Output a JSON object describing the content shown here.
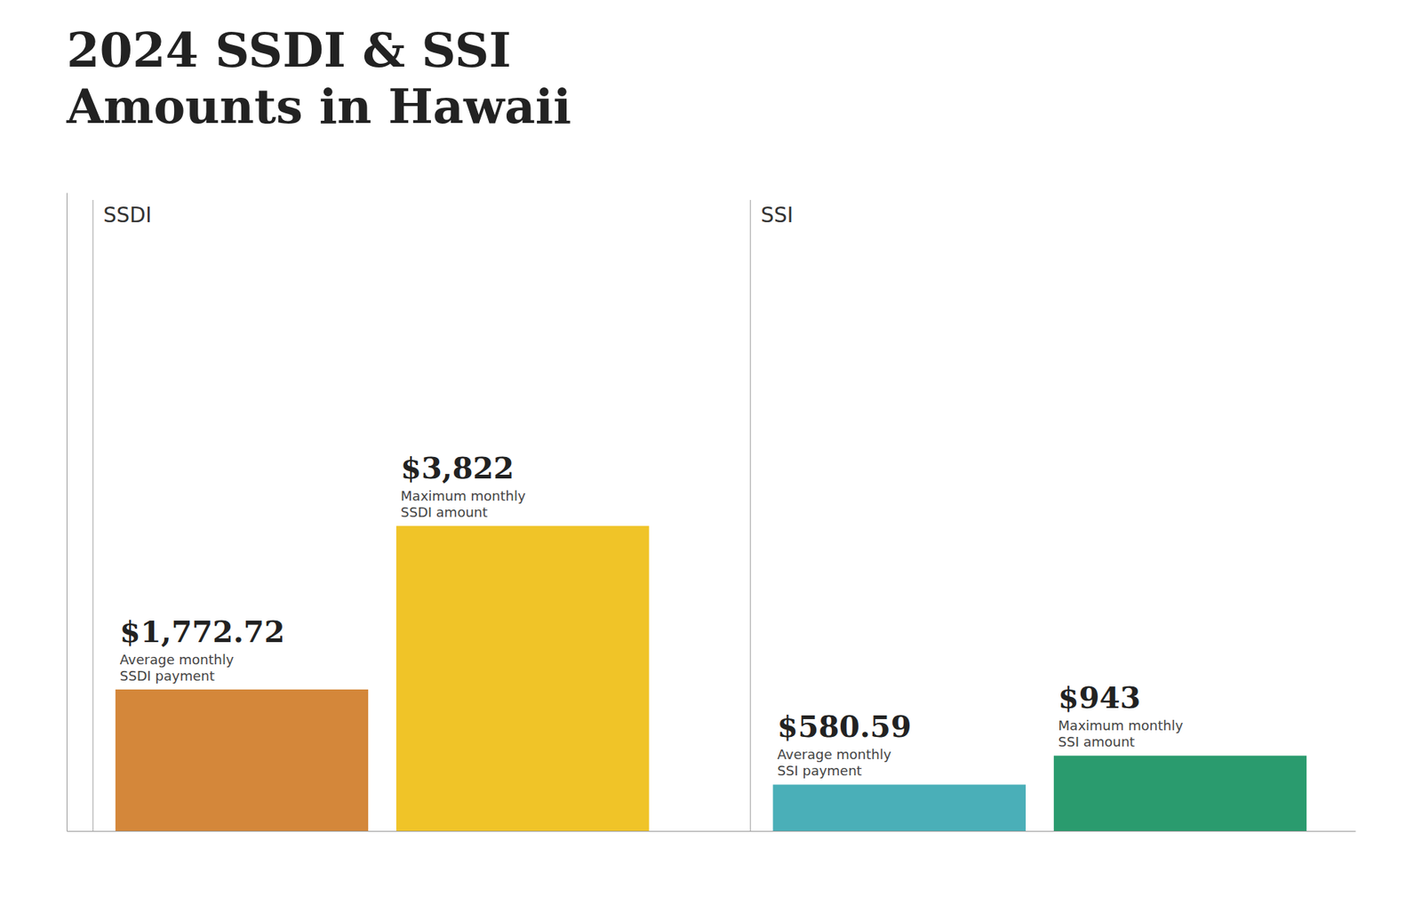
{
  "chart_data": {
    "type": "bar",
    "title": "2024 SSDI & SSI\nAmounts in Hawaii",
    "categories": [
      "Average monthly\nSSDI payment",
      "Maximum monthly\nSSDI amount",
      "Average monthly\nSSI payment",
      "Maximum monthly\nSSI amount"
    ],
    "groups": [
      "SSDI",
      "SSI"
    ],
    "category_groups": [
      "SSDI",
      "SSDI",
      "SSI",
      "SSI"
    ],
    "values": [
      1772.72,
      3822,
      580.59,
      943
    ],
    "value_labels": [
      "$1,772.72",
      "$3,822",
      "$580.59",
      "$943"
    ],
    "data_labels": true,
    "colors": [
      "#D4873A",
      "#F0C428",
      "#4AAFB8",
      "#2A9B6E"
    ],
    "ylim": [
      0,
      8000
    ],
    "tick_labels": false,
    "grid": false
  }
}
